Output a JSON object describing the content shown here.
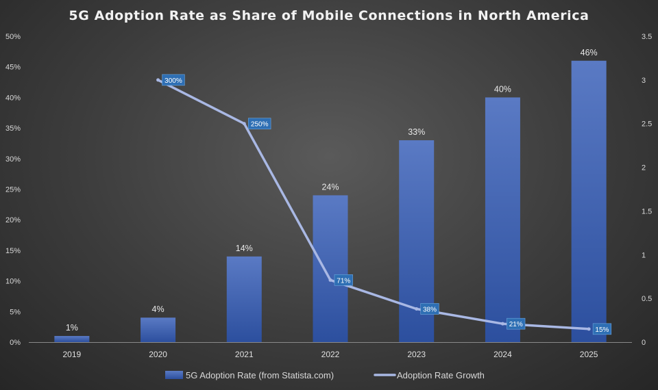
{
  "chart_data": {
    "type": "bar",
    "title": "5G Adoption Rate as Share of Mobile Connections in North America",
    "categories": [
      "2019",
      "2020",
      "2021",
      "2022",
      "2023",
      "2024",
      "2025"
    ],
    "series": [
      {
        "name": "5G Adoption Rate (from Statista.com)",
        "type": "bar",
        "axis": "left",
        "values": [
          1,
          4,
          14,
          24,
          33,
          40,
          46
        ],
        "labels": [
          "1%",
          "4%",
          "14%",
          "24%",
          "33%",
          "40%",
          "46%"
        ],
        "color": "#3f66b8"
      },
      {
        "name": "Adoption Rate Growth",
        "type": "line",
        "axis": "right",
        "values": [
          null,
          3.0,
          2.5,
          0.71,
          0.38,
          0.21,
          0.15
        ],
        "labels": [
          "",
          "300%",
          "250%",
          "71%",
          "38%",
          "21%",
          "15%"
        ],
        "color": "#a9b8e4"
      }
    ],
    "y_left": {
      "min": 0,
      "max": 50,
      "step": 5,
      "tick_labels": [
        "0%",
        "5%",
        "10%",
        "15%",
        "20%",
        "25%",
        "30%",
        "35%",
        "40%",
        "45%",
        "50%"
      ]
    },
    "y_right": {
      "min": 0,
      "max": 3.5,
      "step": 0.5,
      "tick_labels": [
        "0",
        "0.5",
        "1",
        "1.5",
        "2",
        "2.5",
        "3",
        "3.5"
      ]
    },
    "legend_position": "bottom",
    "grid": false
  }
}
